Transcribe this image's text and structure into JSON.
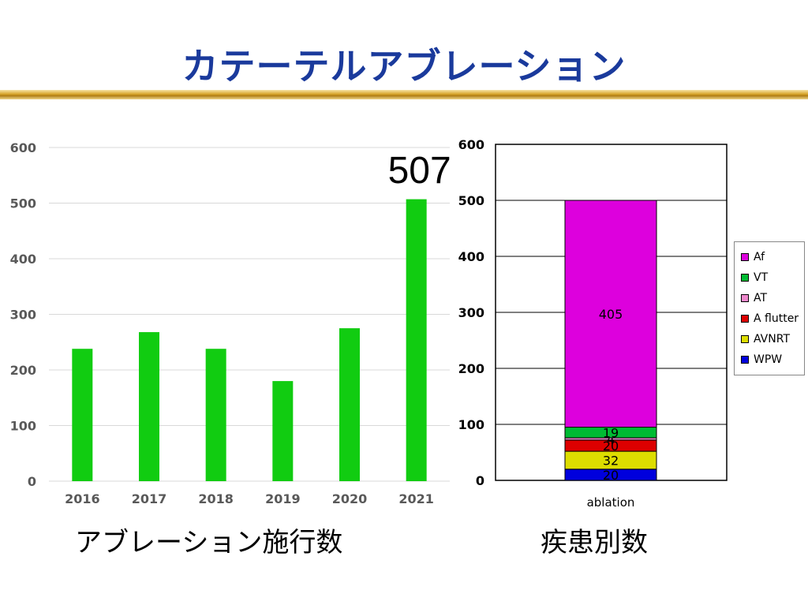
{
  "slide": {
    "title": "カテーテルアブレーション",
    "left_caption": "アブレーション施行数",
    "right_caption": "疾患別数",
    "highlight_value": "507"
  },
  "chart_data": [
    {
      "type": "bar",
      "categories": [
        "2016",
        "2017",
        "2018",
        "2019",
        "2020",
        "2021"
      ],
      "values": [
        238,
        268,
        238,
        180,
        275,
        507
      ],
      "ylim": [
        0,
        600
      ],
      "yticks": [
        "0",
        "100",
        "200",
        "300",
        "400",
        "500",
        "600"
      ],
      "grid": true,
      "colors": {
        "bar": "#11cc11",
        "grid": "#d9d9d9",
        "axis_text": "#595959"
      }
    },
    {
      "type": "bar",
      "stacked": true,
      "categories": [
        "ablation"
      ],
      "ylim": [
        0,
        600
      ],
      "yticks": [
        "0",
        "100",
        "200",
        "300",
        "400",
        "500",
        "600"
      ],
      "grid": true,
      "legend_position": "right",
      "series": [
        {
          "name": "WPW",
          "values": [
            20
          ],
          "color": "#0000dd",
          "label": "20"
        },
        {
          "name": "AVNRT",
          "values": [
            32
          ],
          "color": "#dddd00",
          "label": "32"
        },
        {
          "name": "A flutter",
          "values": [
            20
          ],
          "color": "#dd0000",
          "label": "20"
        },
        {
          "name": "AT",
          "values": [
            4
          ],
          "color": "#ee88cc",
          "label": "4"
        },
        {
          "name": "VT",
          "values": [
            19
          ],
          "color": "#00bb33",
          "label": "19"
        },
        {
          "name": "Af",
          "values": [
            405
          ],
          "color": "#dd00dd",
          "label": "405"
        }
      ]
    }
  ]
}
